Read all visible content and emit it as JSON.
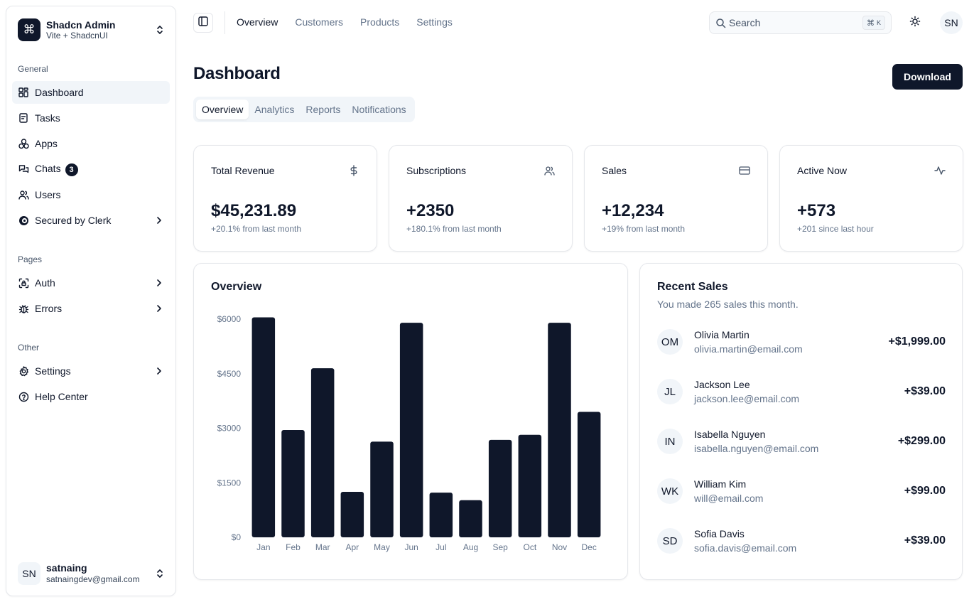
{
  "sidebar": {
    "team_name": "Shadcn Admin",
    "team_sub": "Vite + ShadcnUI",
    "groups": [
      {
        "label": "General"
      },
      {
        "label": "Pages"
      },
      {
        "label": "Other"
      }
    ],
    "items": [
      {
        "label": "Dashboard",
        "icon": "layout-dashboard-icon",
        "active": true
      },
      {
        "label": "Tasks",
        "icon": "checklist-icon"
      },
      {
        "label": "Apps",
        "icon": "packages-icon"
      },
      {
        "label": "Chats",
        "icon": "messages-icon",
        "badge": "3"
      },
      {
        "label": "Users",
        "icon": "users-icon"
      },
      {
        "label": "Secured by Clerk",
        "icon": "clerk-icon",
        "has_chevron": true
      },
      {
        "label": "Auth",
        "icon": "lock-access-icon",
        "has_chevron": true
      },
      {
        "label": "Errors",
        "icon": "bug-icon",
        "has_chevron": true
      },
      {
        "label": "Settings",
        "icon": "settings-icon",
        "has_chevron": true
      },
      {
        "label": "Help Center",
        "icon": "help-circle-icon"
      }
    ],
    "user": {
      "initials": "SN",
      "name": "satnaing",
      "email": "satnaingdev@gmail.com"
    }
  },
  "header": {
    "nav": [
      {
        "label": "Overview",
        "active": true
      },
      {
        "label": "Customers"
      },
      {
        "label": "Products"
      },
      {
        "label": "Settings"
      }
    ],
    "search_placeholder": "Search",
    "shortcut_symbol": "⌘",
    "shortcut_key": "K",
    "avatar_initials": "SN"
  },
  "main": {
    "title": "Dashboard",
    "download_label": "Download",
    "tabs": [
      {
        "label": "Overview",
        "active": true
      },
      {
        "label": "Analytics"
      },
      {
        "label": "Reports"
      },
      {
        "label": "Notifications"
      }
    ],
    "stats": [
      {
        "title": "Total Revenue",
        "value": "$45,231.89",
        "sub": "+20.1% from last month",
        "icon": "dollar-icon"
      },
      {
        "title": "Subscriptions",
        "value": "+2350",
        "sub": "+180.1% from last month",
        "icon": "users-icon"
      },
      {
        "title": "Sales",
        "value": "+12,234",
        "sub": "+19% from last month",
        "icon": "credit-card-icon"
      },
      {
        "title": "Active Now",
        "value": "+573",
        "sub": "+201 since last hour",
        "icon": "activity-icon"
      }
    ],
    "overview_title": "Overview",
    "recent": {
      "title": "Recent Sales",
      "sub": "You made 265 sales this month.",
      "items": [
        {
          "initials": "OM",
          "name": "Olivia Martin",
          "email": "olivia.martin@email.com",
          "amount": "+$1,999.00"
        },
        {
          "initials": "JL",
          "name": "Jackson Lee",
          "email": "jackson.lee@email.com",
          "amount": "+$39.00"
        },
        {
          "initials": "IN",
          "name": "Isabella Nguyen",
          "email": "isabella.nguyen@email.com",
          "amount": "+$299.00"
        },
        {
          "initials": "WK",
          "name": "William Kim",
          "email": "will@email.com",
          "amount": "+$99.00"
        },
        {
          "initials": "SD",
          "name": "Sofia Davis",
          "email": "sofia.davis@email.com",
          "amount": "+$39.00"
        }
      ]
    }
  },
  "chart_data": {
    "type": "bar",
    "categories": [
      "Jan",
      "Feb",
      "Mar",
      "Apr",
      "May",
      "Jun",
      "Jul",
      "Aug",
      "Sep",
      "Oct",
      "Nov",
      "Dec"
    ],
    "values": [
      6050,
      2950,
      4650,
      1250,
      2630,
      5900,
      1230,
      1020,
      2680,
      2820,
      5900,
      3450
    ],
    "y_ticks": [
      "$0",
      "$1500",
      "$3000",
      "$4500",
      "$6000"
    ],
    "ylim": [
      0,
      6000
    ],
    "bar_color": "#0f172a",
    "grid": false
  }
}
